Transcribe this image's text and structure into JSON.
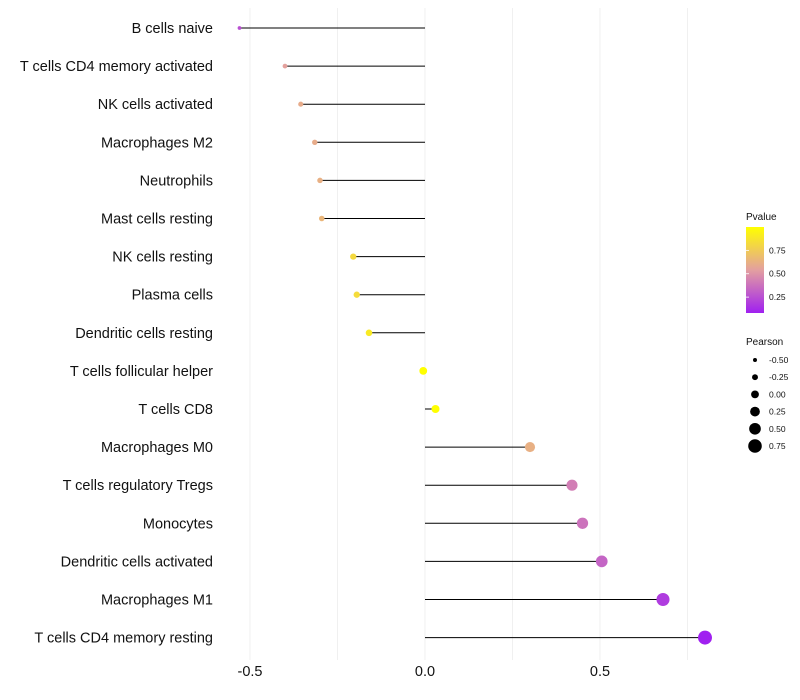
{
  "chart_data": {
    "type": "lollipop",
    "title": "",
    "xlabel": "",
    "ylabel": "",
    "xlim": [
      -0.6,
      0.83
    ],
    "xticks": [
      -0.5,
      0.0,
      0.5
    ],
    "xtick_labels": [
      "-0.5",
      "0.0",
      "0.5"
    ],
    "grid": true,
    "categories": [
      "B cells naive",
      "T cells CD4 memory activated",
      "NK cells activated",
      "Macrophages M2",
      "Neutrophils",
      "Mast cells resting",
      "NK cells resting",
      "Plasma cells",
      "Dendritic cells resting",
      "T cells follicular helper",
      "T cells CD8",
      "Macrophages M0",
      "T cells regulatory  Tregs ",
      "Monocytes",
      "Dendritic cells activated",
      "Macrophages M1",
      "T cells CD4 memory resting"
    ],
    "pearson": [
      -0.53,
      -0.4,
      -0.355,
      -0.315,
      -0.3,
      -0.295,
      -0.205,
      -0.195,
      -0.16,
      -0.005,
      0.03,
      0.3,
      0.42,
      0.45,
      0.505,
      0.68,
      0.8
    ],
    "pvalue": [
      0.25,
      0.55,
      0.6,
      0.6,
      0.62,
      0.65,
      0.82,
      0.83,
      0.9,
      1.0,
      1.0,
      0.62,
      0.42,
      0.38,
      0.33,
      0.18,
      0.08
    ],
    "legend": {
      "placement": "right",
      "color_title": "Pvalue",
      "color_ticks": [
        0.25,
        0.5,
        0.75
      ],
      "color_tick_labels": [
        "0.25",
        "0.50",
        "0.75"
      ],
      "color_range": [
        0.08,
        1.0
      ],
      "color_low": "#a020f0",
      "color_mid": "#e39fa0",
      "color_high": "#ffff00",
      "size_title": "Pearson",
      "size_values": [
        -0.5,
        -0.25,
        0.0,
        0.25,
        0.5,
        0.75
      ],
      "size_labels": [
        "-0.50",
        "-0.25",
        "0.00",
        "0.25",
        "0.50",
        "0.75"
      ]
    }
  }
}
